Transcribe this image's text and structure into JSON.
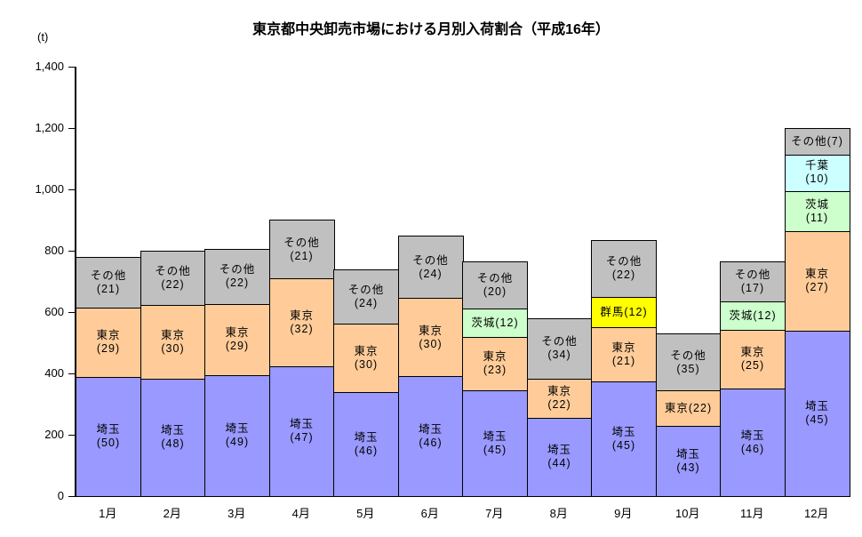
{
  "chart_data": {
    "type": "bar",
    "stacked": true,
    "title": "東京都中央卸売市場における月別入荷割合（平成16年）",
    "unit_label": "(t)",
    "xlabel": "",
    "ylabel": "(t)",
    "ylim": [
      0,
      1400
    ],
    "ytick_interval": 200,
    "ytick_labels": [
      "0",
      "200",
      "400",
      "600",
      "800",
      "1,000",
      "1,200",
      "1,400"
    ],
    "grid": false,
    "legend": "none (labels drawn inside segments)",
    "categories": [
      "1月",
      "2月",
      "3月",
      "4月",
      "5月",
      "6月",
      "7月",
      "8月",
      "9月",
      "10月",
      "11月",
      "12月"
    ],
    "series_colors": {
      "埼玉": "#9999ff",
      "東京": "#ffcc99",
      "茨城": "#ccffcc",
      "千葉": "#ccffff",
      "群馬": "#ffff00",
      "その他": "#c0c0c0"
    },
    "segment_border_color": "#000000",
    "months": [
      {
        "category": "1月",
        "total_t": 780,
        "segments": [
          {
            "region": "埼玉",
            "pct": 50,
            "label_lines": [
              "埼玉",
              "(50)"
            ]
          },
          {
            "region": "東京",
            "pct": 29,
            "label_lines": [
              "東京",
              "(29)"
            ]
          },
          {
            "region": "その他",
            "pct": 21,
            "label_lines": [
              "その他",
              "(21)"
            ]
          }
        ]
      },
      {
        "category": "2月",
        "total_t": 800,
        "segments": [
          {
            "region": "埼玉",
            "pct": 48,
            "label_lines": [
              "埼玉",
              "(48)"
            ]
          },
          {
            "region": "東京",
            "pct": 30,
            "label_lines": [
              "東京",
              "(30)"
            ]
          },
          {
            "region": "その他",
            "pct": 22,
            "label_lines": [
              "その他",
              "(22)"
            ]
          }
        ]
      },
      {
        "category": "3月",
        "total_t": 805,
        "segments": [
          {
            "region": "埼玉",
            "pct": 49,
            "label_lines": [
              "埼玉",
              "(49)"
            ]
          },
          {
            "region": "東京",
            "pct": 29,
            "label_lines": [
              "東京",
              "(29)"
            ]
          },
          {
            "region": "その他",
            "pct": 22,
            "label_lines": [
              "その他",
              "(22)"
            ]
          }
        ]
      },
      {
        "category": "4月",
        "total_t": 900,
        "segments": [
          {
            "region": "埼玉",
            "pct": 47,
            "label_lines": [
              "埼玉",
              "(47)"
            ]
          },
          {
            "region": "東京",
            "pct": 32,
            "label_lines": [
              "東京",
              "(32)"
            ]
          },
          {
            "region": "その他",
            "pct": 21,
            "label_lines": [
              "その他",
              "(21)"
            ]
          }
        ]
      },
      {
        "category": "5月",
        "total_t": 740,
        "segments": [
          {
            "region": "埼玉",
            "pct": 46,
            "label_lines": [
              "埼玉",
              "(46)"
            ]
          },
          {
            "region": "東京",
            "pct": 30,
            "label_lines": [
              "東京",
              "(30)"
            ]
          },
          {
            "region": "その他",
            "pct": 24,
            "label_lines": [
              "その他",
              "(24)"
            ]
          }
        ]
      },
      {
        "category": "6月",
        "total_t": 850,
        "segments": [
          {
            "region": "埼玉",
            "pct": 46,
            "label_lines": [
              "埼玉",
              "(46)"
            ]
          },
          {
            "region": "東京",
            "pct": 30,
            "label_lines": [
              "東京",
              "(30)"
            ]
          },
          {
            "region": "その他",
            "pct": 24,
            "label_lines": [
              "その他",
              "(24)"
            ]
          }
        ]
      },
      {
        "category": "7月",
        "total_t": 765,
        "segments": [
          {
            "region": "埼玉",
            "pct": 45,
            "label_lines": [
              "埼玉",
              "(45)"
            ]
          },
          {
            "region": "東京",
            "pct": 23,
            "label_lines": [
              "東京",
              "(23)"
            ]
          },
          {
            "region": "茨城",
            "pct": 12,
            "label_lines": [
              "茨城(12)"
            ]
          },
          {
            "region": "その他",
            "pct": 20,
            "label_lines": [
              "その他",
              "(20)"
            ]
          }
        ]
      },
      {
        "category": "8月",
        "total_t": 580,
        "segments": [
          {
            "region": "埼玉",
            "pct": 44,
            "label_lines": [
              "埼玉",
              "(44)"
            ]
          },
          {
            "region": "東京",
            "pct": 22,
            "label_lines": [
              "東京",
              "(22)"
            ]
          },
          {
            "region": "その他",
            "pct": 34,
            "label_lines": [
              "その他",
              "(34)"
            ]
          }
        ]
      },
      {
        "category": "9月",
        "total_t": 835,
        "segments": [
          {
            "region": "埼玉",
            "pct": 45,
            "label_lines": [
              "埼玉",
              "(45)"
            ]
          },
          {
            "region": "東京",
            "pct": 21,
            "label_lines": [
              "東京",
              "(21)"
            ]
          },
          {
            "region": "群馬",
            "pct": 12,
            "label_lines": [
              "群馬(12)"
            ]
          },
          {
            "region": "その他",
            "pct": 22,
            "label_lines": [
              "その他",
              "(22)"
            ]
          }
        ]
      },
      {
        "category": "10月",
        "total_t": 530,
        "segments": [
          {
            "region": "埼玉",
            "pct": 43,
            "label_lines": [
              "埼玉",
              "(43)"
            ]
          },
          {
            "region": "東京",
            "pct": 22,
            "label_lines": [
              "東京(22)"
            ]
          },
          {
            "region": "その他",
            "pct": 35,
            "label_lines": [
              "その他",
              "(35)"
            ]
          }
        ]
      },
      {
        "category": "11月",
        "total_t": 765,
        "segments": [
          {
            "region": "埼玉",
            "pct": 46,
            "label_lines": [
              "埼玉",
              "(46)"
            ]
          },
          {
            "region": "東京",
            "pct": 25,
            "label_lines": [
              "東京",
              "(25)"
            ]
          },
          {
            "region": "茨城",
            "pct": 12,
            "label_lines": [
              "茨城(12)"
            ]
          },
          {
            "region": "その他",
            "pct": 17,
            "label_lines": [
              "その他",
              "(17)"
            ]
          }
        ]
      },
      {
        "category": "12月",
        "total_t": 1200,
        "segments": [
          {
            "region": "埼玉",
            "pct": 45,
            "label_lines": [
              "埼玉",
              "(45)"
            ]
          },
          {
            "region": "東京",
            "pct": 27,
            "label_lines": [
              "東京",
              "(27)"
            ]
          },
          {
            "region": "茨城",
            "pct": 11,
            "label_lines": [
              "茨城",
              "(11)"
            ]
          },
          {
            "region": "千葉",
            "pct": 10,
            "label_lines": [
              "千葉",
              "(10)"
            ]
          },
          {
            "region": "その他",
            "pct": 7,
            "label_lines": [
              "その他(7)"
            ]
          }
        ]
      }
    ]
  }
}
